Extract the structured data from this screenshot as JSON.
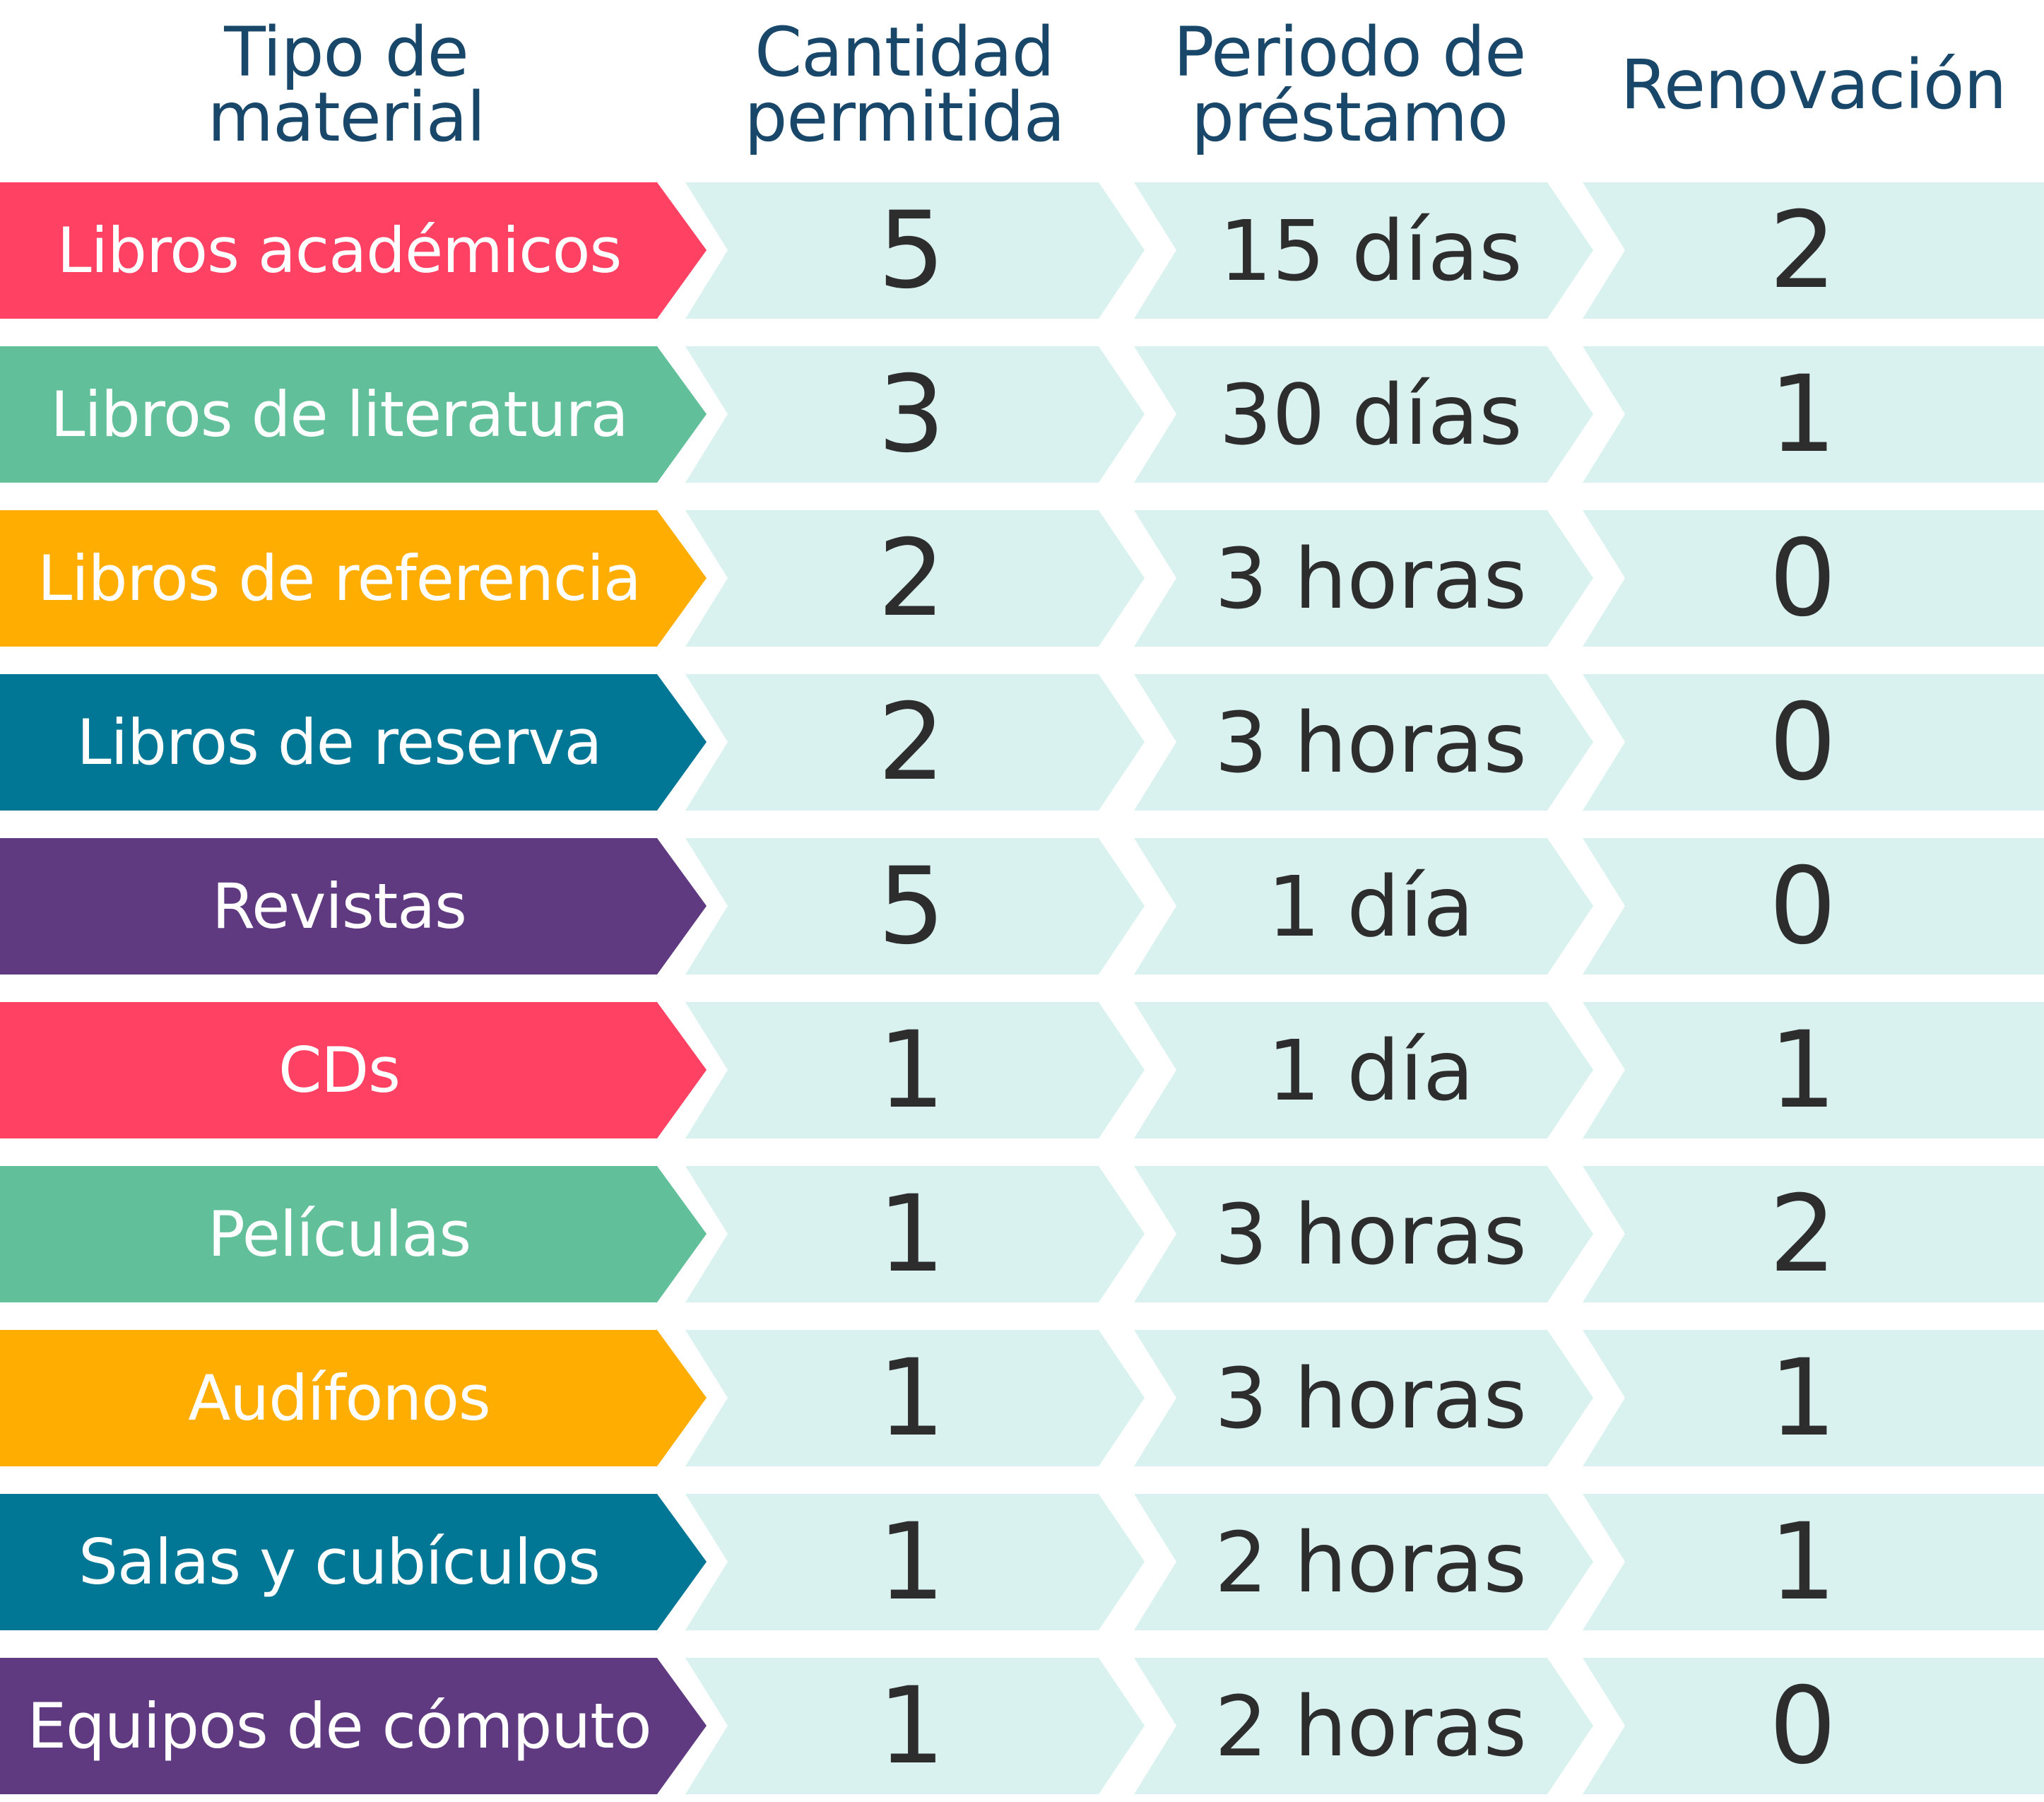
{
  "header": {
    "type": "Tipo de\nmaterial",
    "quantity": "Cantidad\npermitida",
    "period": "Periodo de\npréstamo",
    "renewal": "Renovación"
  },
  "rows": [
    {
      "type": "Libros académicos",
      "quantity": "5",
      "period": "15 días",
      "renewal": "2",
      "color": "#ff4163"
    },
    {
      "type": "Libros de literatura",
      "quantity": "3",
      "period": "30 días",
      "renewal": "1",
      "color": "#61bf99"
    },
    {
      "type": "Libros de referencia",
      "quantity": "2",
      "period": "3 horas",
      "renewal": "0",
      "color": "#ffad00"
    },
    {
      "type": "Libros de reserva",
      "quantity": "2",
      "period": "3 horas",
      "renewal": "0",
      "color": "#017795"
    },
    {
      "type": "Revistas",
      "quantity": "5",
      "period": "1 día",
      "renewal": "0",
      "color": "#5f3a80"
    },
    {
      "type": "CDs",
      "quantity": "1",
      "period": "1 día",
      "renewal": "1",
      "color": "#ff4163"
    },
    {
      "type": "Películas",
      "quantity": "1",
      "period": "3 horas",
      "renewal": "2",
      "color": "#61bf99"
    },
    {
      "type": "Audífonos",
      "quantity": "1",
      "period": "3 horas",
      "renewal": "1",
      "color": "#ffad00"
    },
    {
      "type": "Salas y cubículos",
      "quantity": "1",
      "period": "2 horas",
      "renewal": "1",
      "color": "#017795"
    },
    {
      "type": "Equipos de cómputo",
      "quantity": "1",
      "period": "2 horas",
      "renewal": "0",
      "color": "#5f3a80"
    }
  ]
}
